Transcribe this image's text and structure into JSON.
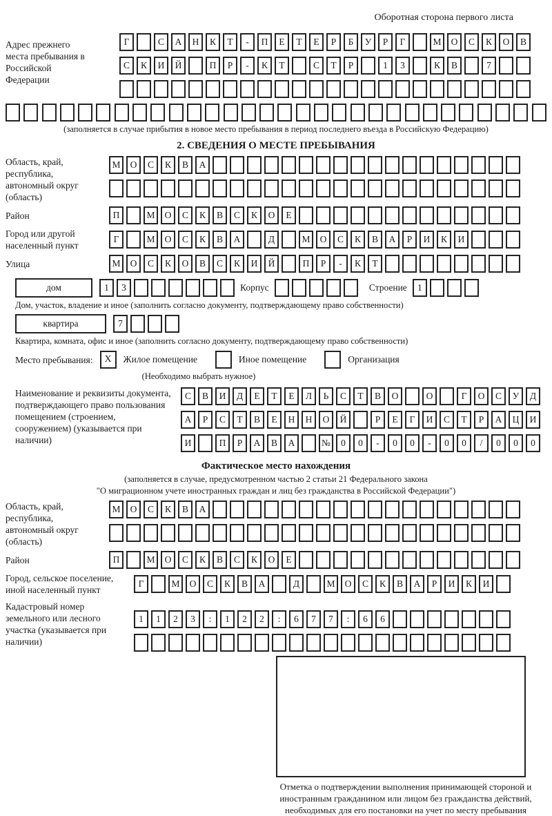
{
  "header": {
    "note": "Оборотная сторона первого листа"
  },
  "prev_address": {
    "label": "Адрес прежнего места пребывания в Российской Федерации",
    "rows": [
      [
        "Г",
        "",
        "С",
        "А",
        "Н",
        "К",
        "Т",
        "-",
        "П",
        "Е",
        "Т",
        "Е",
        "Р",
        "Б",
        "У",
        "Р",
        "Г",
        "",
        "М",
        "О",
        "С",
        "К",
        "О",
        "В"
      ],
      [
        "С",
        "К",
        "И",
        "Й",
        "",
        "П",
        "Р",
        "-",
        "К",
        "Т",
        "",
        "С",
        "Т",
        "Р",
        "",
        "1",
        "3",
        "",
        "К",
        "В",
        "",
        "7",
        "",
        ""
      ],
      [
        "",
        "",
        "",
        "",
        "",
        "",
        "",
        "",
        "",
        "",
        "",
        "",
        "",
        "",
        "",
        "",
        "",
        "",
        "",
        "",
        "",
        "",
        "",
        ""
      ]
    ],
    "overflow_row": [
      "",
      "",
      "",
      "",
      "",
      "",
      "",
      "",
      "",
      "",
      "",
      "",
      "",
      "",
      "",
      "",
      "",
      "",
      "",
      "",
      "",
      "",
      "",
      "",
      "",
      "",
      "",
      "",
      "",
      ""
    ],
    "caption": "(заполняется в случае прибытия в новое место пребывания в период последнего въезда в Российскую Федерацию)"
  },
  "section2": {
    "title": "2. СВЕДЕНИЯ О МЕСТЕ ПРЕБЫВАНИЯ",
    "region": {
      "label": "Область, край, республика, автономный округ (область)",
      "rows": [
        [
          "М",
          "О",
          "С",
          "К",
          "В",
          "А",
          "",
          "",
          "",
          "",
          "",
          "",
          "",
          "",
          "",
          "",
          "",
          "",
          "",
          "",
          "",
          "",
          "",
          ""
        ],
        [
          "",
          "",
          "",
          "",
          "",
          "",
          "",
          "",
          "",
          "",
          "",
          "",
          "",
          "",
          "",
          "",
          "",
          "",
          "",
          "",
          "",
          "",
          "",
          ""
        ]
      ]
    },
    "district": {
      "label": "Район",
      "cells": [
        "П",
        "",
        "М",
        "О",
        "С",
        "К",
        "В",
        "С",
        "К",
        "О",
        "Е",
        "",
        "",
        "",
        "",
        "",
        "",
        "",
        "",
        "",
        "",
        "",
        "",
        ""
      ]
    },
    "city": {
      "label": "Город или другой населенный пункт",
      "cells": [
        "Г",
        "",
        "М",
        "О",
        "С",
        "К",
        "В",
        "А",
        "",
        "Д",
        "",
        "М",
        "О",
        "С",
        "К",
        "В",
        "А",
        "Р",
        "И",
        "К",
        "И",
        "",
        "",
        ""
      ]
    },
    "street": {
      "label": "Улица",
      "cells": [
        "М",
        "О",
        "С",
        "К",
        "О",
        "В",
        "С",
        "К",
        "И",
        "Й",
        "",
        "П",
        "Р",
        "-",
        "К",
        "Т",
        "",
        "",
        "",
        "",
        "",
        "",
        "",
        ""
      ]
    },
    "house": {
      "box_label": "дом",
      "cells": [
        "1",
        "3",
        "",
        "",
        "",
        "",
        "",
        ""
      ],
      "korpus_label": "Корпус",
      "korpus_cells": [
        "",
        "",
        "",
        "",
        ""
      ],
      "stroenie_label": "Строение",
      "stroenie_cells": [
        "1",
        "",
        "",
        ""
      ]
    },
    "house_caption": "Дом, участок, владение и иное (заполнить согласно документу, подтверждающему право собственности)",
    "apartment": {
      "box_label": "квартира",
      "cells": [
        "7",
        "",
        "",
        ""
      ]
    },
    "apartment_caption": "Квартира, комната, офис и иное (заполнить согласно документу, подтверждающему право собственности)",
    "stay_type": {
      "label": "Место пребывания:",
      "options": [
        {
          "mark": "X",
          "label": "Жилое помещение"
        },
        {
          "mark": "",
          "label": "Иное помещение"
        },
        {
          "mark": "",
          "label": "Организация"
        }
      ],
      "note": "(Необходимо выбрать нужное)"
    },
    "document": {
      "label": "Наименование и реквизиты документа, подтверждающего право пользования помещением (строением, сооружением) (указывается при наличии)",
      "rows": [
        [
          "С",
          "В",
          "И",
          "Д",
          "Е",
          "Т",
          "Е",
          "Л",
          "Ь",
          "С",
          "Т",
          "В",
          "О",
          "",
          "О",
          "",
          "Г",
          "О",
          "С",
          "У",
          "Д"
        ],
        [
          "А",
          "Р",
          "С",
          "Т",
          "В",
          "Е",
          "Н",
          "Н",
          "О",
          "Й",
          "",
          "Р",
          "Е",
          "Г",
          "И",
          "С",
          "Т",
          "Р",
          "А",
          "Ц",
          "И"
        ],
        [
          "И",
          "",
          "П",
          "Р",
          "А",
          "В",
          "А",
          "",
          "№",
          "0",
          "0",
          "-",
          "0",
          "0",
          "-",
          "0",
          "0",
          "/",
          "0",
          "0",
          "0"
        ]
      ]
    }
  },
  "actual_location": {
    "title": "Фактическое место нахождения",
    "caption_line1": "(заполняется в случае, предусмотренном частью 2 статьи 21 Федерального закона",
    "caption_line2": "\"О миграционном учете иностранных граждан и лиц без гражданства в Российской Федерации\")",
    "region": {
      "label": "Область, край, республика, автономный округ (область)",
      "rows": [
        [
          "М",
          "О",
          "С",
          "К",
          "В",
          "А",
          "",
          "",
          "",
          "",
          "",
          "",
          "",
          "",
          "",
          "",
          "",
          "",
          "",
          "",
          "",
          "",
          "",
          ""
        ],
        [
          "",
          "",
          "",
          "",
          "",
          "",
          "",
          "",
          "",
          "",
          "",
          "",
          "",
          "",
          "",
          "",
          "",
          "",
          "",
          "",
          "",
          "",
          "",
          ""
        ]
      ]
    },
    "district": {
      "label": "Район",
      "cells": [
        "П",
        "",
        "М",
        "О",
        "С",
        "К",
        "В",
        "С",
        "К",
        "О",
        "Е",
        "",
        "",
        "",
        "",
        "",
        "",
        "",
        "",
        "",
        "",
        "",
        "",
        ""
      ]
    },
    "city": {
      "label": "Город, сельское поселение, иной населенный пункт",
      "cells": [
        "Г",
        "",
        "М",
        "О",
        "С",
        "К",
        "В",
        "А",
        "",
        "Д",
        "",
        "М",
        "О",
        "С",
        "К",
        "В",
        "А",
        "Р",
        "И",
        "К",
        "И",
        ""
      ]
    },
    "cadastre": {
      "label": "Кадастровый номер земельного или лесного участка (указывается при наличии)",
      "rows": [
        [
          "1",
          "1",
          "2",
          "3",
          ":",
          "1",
          "2",
          "2",
          ":",
          "6",
          "7",
          "7",
          ":",
          "6",
          "6",
          "",
          "",
          "",
          "",
          "",
          "",
          ""
        ],
        [
          "",
          "",
          "",
          "",
          "",
          "",
          "",
          "",
          "",
          "",
          "",
          "",
          "",
          "",
          "",
          "",
          "",
          "",
          "",
          "",
          "",
          ""
        ]
      ]
    },
    "stamp_caption": "Отметка о подтверждении выполнения принимающей стороной и иностранным гражданином или лицом без гражданства действий, необходимых для его постановки на учет по месту пребывания"
  }
}
